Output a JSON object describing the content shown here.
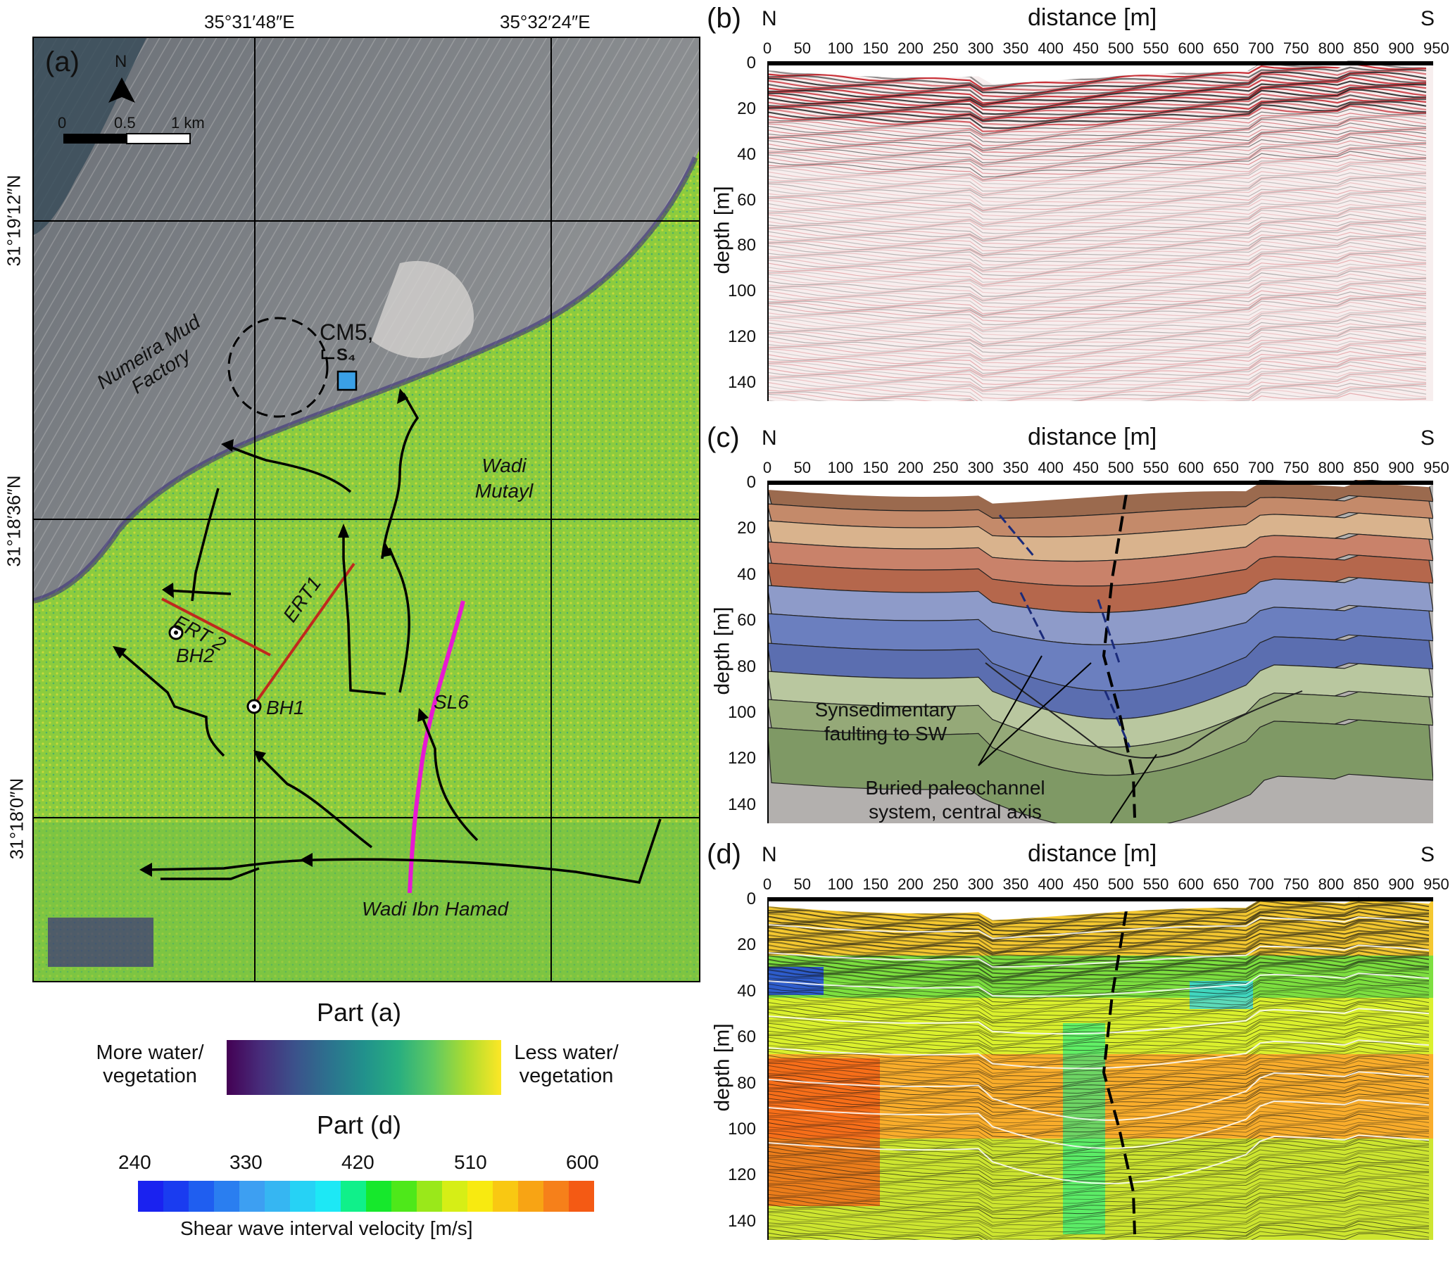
{
  "panel_a": {
    "letter": "(a)",
    "lon_labels": [
      "35°31′48″E",
      "35°32′24″E"
    ],
    "lat_labels": [
      "31°19′12″N",
      "31°18′36″N",
      "31°18′0″N"
    ],
    "north": "N",
    "scale": {
      "ticks": [
        "0",
        "0.5",
        "1 km"
      ]
    },
    "labels": {
      "factory": "Numeira Mud Factory",
      "cm5": "CM5,",
      "s4": "S₄",
      "wadi_mutayl": "Wadi Mutayl",
      "wadi_ibn_hamad": "Wadi Ibn Hamad",
      "ert1": "ERT1",
      "ert2": "ERT 2",
      "bh1": "BH1",
      "bh2": "BH2",
      "sl6": "SL6"
    },
    "colors": {
      "ert": "#c0281e",
      "sl6": "#e619d2",
      "cm5_box": "#3aa0e6"
    }
  },
  "legend": {
    "part_a_title": "Part (a)",
    "more_water": "More water/ vegetation",
    "less_water": "Less water/ vegetation",
    "part_d_title": "Part (d)",
    "velocity_ticks": [
      "240",
      "330",
      "420",
      "510",
      "600"
    ],
    "velocity_caption": "Shear wave interval velocity [m/s]",
    "velocity_colors": [
      "#1a22f0",
      "#1a3cf0",
      "#1f5ef0",
      "#2a7ef0",
      "#3d9ff2",
      "#36b6f2",
      "#26d2f5",
      "#1de8f5",
      "#10f08a",
      "#16e82c",
      "#4ee81a",
      "#9ae81a",
      "#d6ee16",
      "#f8ea10",
      "#f9c812",
      "#f8a414",
      "#f6801a",
      "#f45a14"
    ],
    "viridis": [
      "#440154",
      "#472d7b",
      "#3b528b",
      "#2c728e",
      "#21918c",
      "#28ae80",
      "#5ec962",
      "#addc30",
      "#fde725"
    ]
  },
  "sections": {
    "distance_label": "distance [m]",
    "depth_label": "depth [m]",
    "left": "N",
    "right": "S",
    "x_ticks": [
      "0",
      "50",
      "100",
      "150",
      "200",
      "250",
      "300",
      "350",
      "400",
      "450",
      "500",
      "550",
      "600",
      "650",
      "700",
      "750",
      "800",
      "850",
      "900",
      "950"
    ],
    "depth_ticks": [
      "0",
      "20",
      "40",
      "60",
      "80",
      "100",
      "120",
      "140"
    ],
    "b_letter": "(b)",
    "c_letter": "(c)",
    "d_letter": "(d)"
  },
  "panel_c": {
    "annotation_1": "Synsedimentary faulting to SW",
    "annotation_2": "Buried paleochannel system, central axis"
  }
}
